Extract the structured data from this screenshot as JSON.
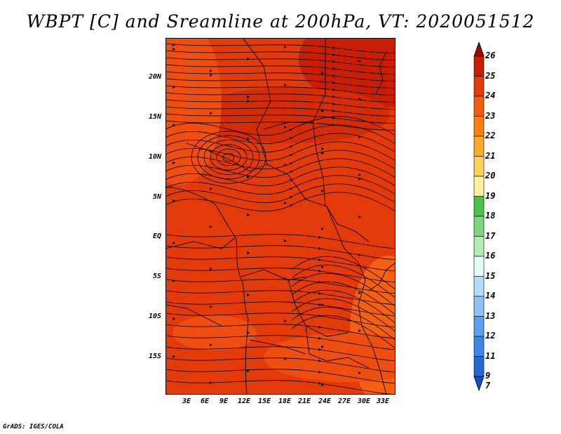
{
  "title": "WBPT [C] and Sreamline at 200hPa, VT: 2020051512",
  "footer": "GrADS: IGES/COLA",
  "map": {
    "lat_labels": [
      "20N",
      "15N",
      "10N",
      "5N",
      "EQ",
      "5S",
      "10S",
      "15S"
    ],
    "lon_labels": [
      "3E",
      "6E",
      "9E",
      "12E",
      "15E",
      "18E",
      "21E",
      "24E",
      "27E",
      "30E",
      "33E"
    ],
    "field": "wet-bulb potential temperature shading with streamlines",
    "colors": {
      "background": "#e23a08",
      "dark": "#c81e04",
      "mid": "#ee4e0f",
      "light": "#f6600f"
    }
  },
  "colorbar": {
    "labels": [
      "26",
      "25",
      "24",
      "23",
      "22",
      "21",
      "20",
      "19",
      "18",
      "17",
      "16",
      "15",
      "14",
      "13",
      "12",
      "11",
      "9",
      "7"
    ],
    "colors": [
      "#a50000",
      "#c81e04",
      "#e23a08",
      "#f25d0f",
      "#f98311",
      "#fbab2a",
      "#fdd05c",
      "#fff0a0",
      "#4cc24c",
      "#7cd87c",
      "#b2ecb2",
      "#e6fbf8",
      "#b4dcfa",
      "#8cc4f4",
      "#5aa0ec",
      "#3c86e4",
      "#2468d4",
      "#1a4cc0"
    ]
  }
}
